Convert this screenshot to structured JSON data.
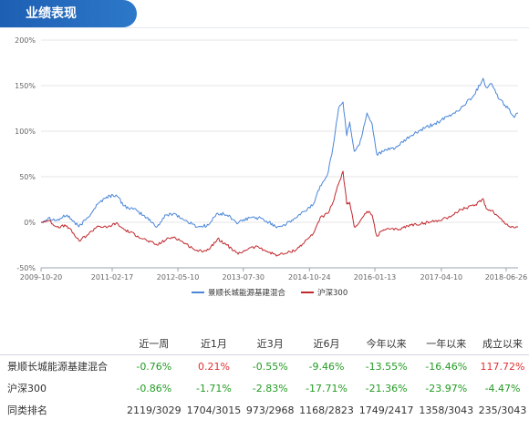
{
  "header": {
    "title": "业绩表现"
  },
  "chart_data": {
    "type": "line",
    "ylim": [
      -50,
      200
    ],
    "yticks": [
      "200%",
      "150%",
      "100%",
      "50%",
      "0%",
      "-50%"
    ],
    "y_tick_values": [
      200,
      150,
      100,
      50,
      0,
      -50
    ],
    "xlim": [
      "2009-10-20",
      "2018-09-15"
    ],
    "xticks": [
      "2009-10-20",
      "2011-02-17",
      "2012-05-10",
      "2013-07-30",
      "2014-10-24",
      "2016-01-13",
      "2017-04-10",
      "2018-06-26"
    ],
    "grid": true,
    "legend_position": "bottom",
    "series": [
      {
        "name": "景顺长城能源基建混合",
        "color": "#4a86d8",
        "points": [
          [
            "2009-10-20",
            0
          ],
          [
            "2009-12-10",
            5
          ],
          [
            "2010-02-05",
            2
          ],
          [
            "2010-04-15",
            8
          ],
          [
            "2010-07-05",
            -5
          ],
          [
            "2010-09-01",
            5
          ],
          [
            "2010-11-10",
            20
          ],
          [
            "2011-01-10",
            28
          ],
          [
            "2011-03-15",
            30
          ],
          [
            "2011-05-10",
            18
          ],
          [
            "2011-08-10",
            12
          ],
          [
            "2011-10-10",
            5
          ],
          [
            "2011-12-20",
            -5
          ],
          [
            "2012-02-20",
            8
          ],
          [
            "2012-04-15",
            10
          ],
          [
            "2012-06-15",
            3
          ],
          [
            "2012-08-15",
            -2
          ],
          [
            "2012-09-25",
            -5
          ],
          [
            "2012-12-05",
            -3
          ],
          [
            "2013-02-05",
            10
          ],
          [
            "2013-04-10",
            8
          ],
          [
            "2013-06-25",
            -1
          ],
          [
            "2013-09-10",
            5
          ],
          [
            "2013-11-10",
            5
          ],
          [
            "2014-01-20",
            0
          ],
          [
            "2014-03-20",
            -5
          ],
          [
            "2014-05-20",
            -2
          ],
          [
            "2014-07-25",
            5
          ],
          [
            "2014-09-20",
            12
          ],
          [
            "2014-11-20",
            20
          ],
          [
            "2015-01-05",
            40
          ],
          [
            "2015-03-01",
            55
          ],
          [
            "2015-04-10",
            90
          ],
          [
            "2015-05-10",
            125
          ],
          [
            "2015-06-10",
            132
          ],
          [
            "2015-07-05",
            95
          ],
          [
            "2015-07-25",
            110
          ],
          [
            "2015-08-25",
            78
          ],
          [
            "2015-09-30",
            85
          ],
          [
            "2015-11-20",
            120
          ],
          [
            "2015-12-25",
            108
          ],
          [
            "2016-01-25",
            75
          ],
          [
            "2016-03-15",
            78
          ],
          [
            "2016-06-15",
            83
          ],
          [
            "2016-09-15",
            95
          ],
          [
            "2016-12-15",
            103
          ],
          [
            "2017-03-20",
            110
          ],
          [
            "2017-06-20",
            118
          ],
          [
            "2017-08-20",
            125
          ],
          [
            "2017-11-20",
            140
          ],
          [
            "2018-01-20",
            158
          ],
          [
            "2018-02-10",
            148
          ],
          [
            "2018-03-20",
            152
          ],
          [
            "2018-05-10",
            135
          ],
          [
            "2018-07-10",
            125
          ],
          [
            "2018-08-20",
            115
          ],
          [
            "2018-09-15",
            120
          ]
        ]
      },
      {
        "name": "沪深300",
        "color": "#c0282d",
        "points": [
          [
            "2009-10-20",
            0
          ],
          [
            "2009-12-10",
            2
          ],
          [
            "2010-02-05",
            -5
          ],
          [
            "2010-04-15",
            -4
          ],
          [
            "2010-07-05",
            -20
          ],
          [
            "2010-09-01",
            -14
          ],
          [
            "2010-11-10",
            -4
          ],
          [
            "2011-01-10",
            -6
          ],
          [
            "2011-03-15",
            -1
          ],
          [
            "2011-05-10",
            -8
          ],
          [
            "2011-08-10",
            -15
          ],
          [
            "2011-10-10",
            -20
          ],
          [
            "2011-12-20",
            -25
          ],
          [
            "2012-02-20",
            -19
          ],
          [
            "2012-04-15",
            -16
          ],
          [
            "2012-06-15",
            -22
          ],
          [
            "2012-08-15",
            -28
          ],
          [
            "2012-09-25",
            -32
          ],
          [
            "2012-12-05",
            -30
          ],
          [
            "2013-02-05",
            -18
          ],
          [
            "2013-04-10",
            -25
          ],
          [
            "2013-06-25",
            -35
          ],
          [
            "2013-09-10",
            -28
          ],
          [
            "2013-11-10",
            -27
          ],
          [
            "2014-01-20",
            -33
          ],
          [
            "2014-03-20",
            -36
          ],
          [
            "2014-05-20",
            -34
          ],
          [
            "2014-07-25",
            -30
          ],
          [
            "2014-09-20",
            -22
          ],
          [
            "2014-11-20",
            -12
          ],
          [
            "2015-01-05",
            5
          ],
          [
            "2015-03-01",
            10
          ],
          [
            "2015-04-10",
            25
          ],
          [
            "2015-05-10",
            42
          ],
          [
            "2015-06-10",
            56
          ],
          [
            "2015-07-05",
            20
          ],
          [
            "2015-07-25",
            22
          ],
          [
            "2015-08-25",
            -5
          ],
          [
            "2015-09-30",
            0
          ],
          [
            "2015-11-20",
            12
          ],
          [
            "2015-12-25",
            8
          ],
          [
            "2016-01-25",
            -15
          ],
          [
            "2016-03-15",
            -8
          ],
          [
            "2016-06-15",
            -8
          ],
          [
            "2016-09-15",
            -3
          ],
          [
            "2016-12-15",
            -1
          ],
          [
            "2017-03-20",
            2
          ],
          [
            "2017-06-20",
            7
          ],
          [
            "2017-08-20",
            14
          ],
          [
            "2017-11-20",
            18
          ],
          [
            "2018-01-20",
            26
          ],
          [
            "2018-02-10",
            15
          ],
          [
            "2018-03-20",
            13
          ],
          [
            "2018-05-10",
            5
          ],
          [
            "2018-07-10",
            -4
          ],
          [
            "2018-08-20",
            -6
          ],
          [
            "2018-09-15",
            -5
          ]
        ]
      }
    ]
  },
  "table": {
    "headers": [
      "",
      "近一周",
      "近1月",
      "近3月",
      "近6月",
      "今年以来",
      "一年以来",
      "成立以来"
    ],
    "rows": [
      {
        "name": "景顺长城能源基建混合",
        "values": [
          "-0.76%",
          "0.21%",
          "-0.55%",
          "-9.46%",
          "-13.55%",
          "-16.46%",
          "117.72%"
        ],
        "tones": [
          "neg",
          "pos",
          "neg",
          "neg",
          "neg",
          "neg",
          "pos"
        ]
      },
      {
        "name": "沪深300",
        "values": [
          "-0.86%",
          "-1.71%",
          "-2.83%",
          "-17.71%",
          "-21.36%",
          "-23.97%",
          "-4.47%"
        ],
        "tones": [
          "neg",
          "neg",
          "neg",
          "neg",
          "neg",
          "neg",
          "neg"
        ]
      },
      {
        "name": "同类排名",
        "values": [
          "2119/3029",
          "1704/3015",
          "973/2968",
          "1168/2823",
          "1749/2417",
          "1358/3043",
          "235/3043"
        ],
        "tones": [
          "rank",
          "rank",
          "rank",
          "rank",
          "rank",
          "rank",
          "rank"
        ]
      }
    ]
  }
}
